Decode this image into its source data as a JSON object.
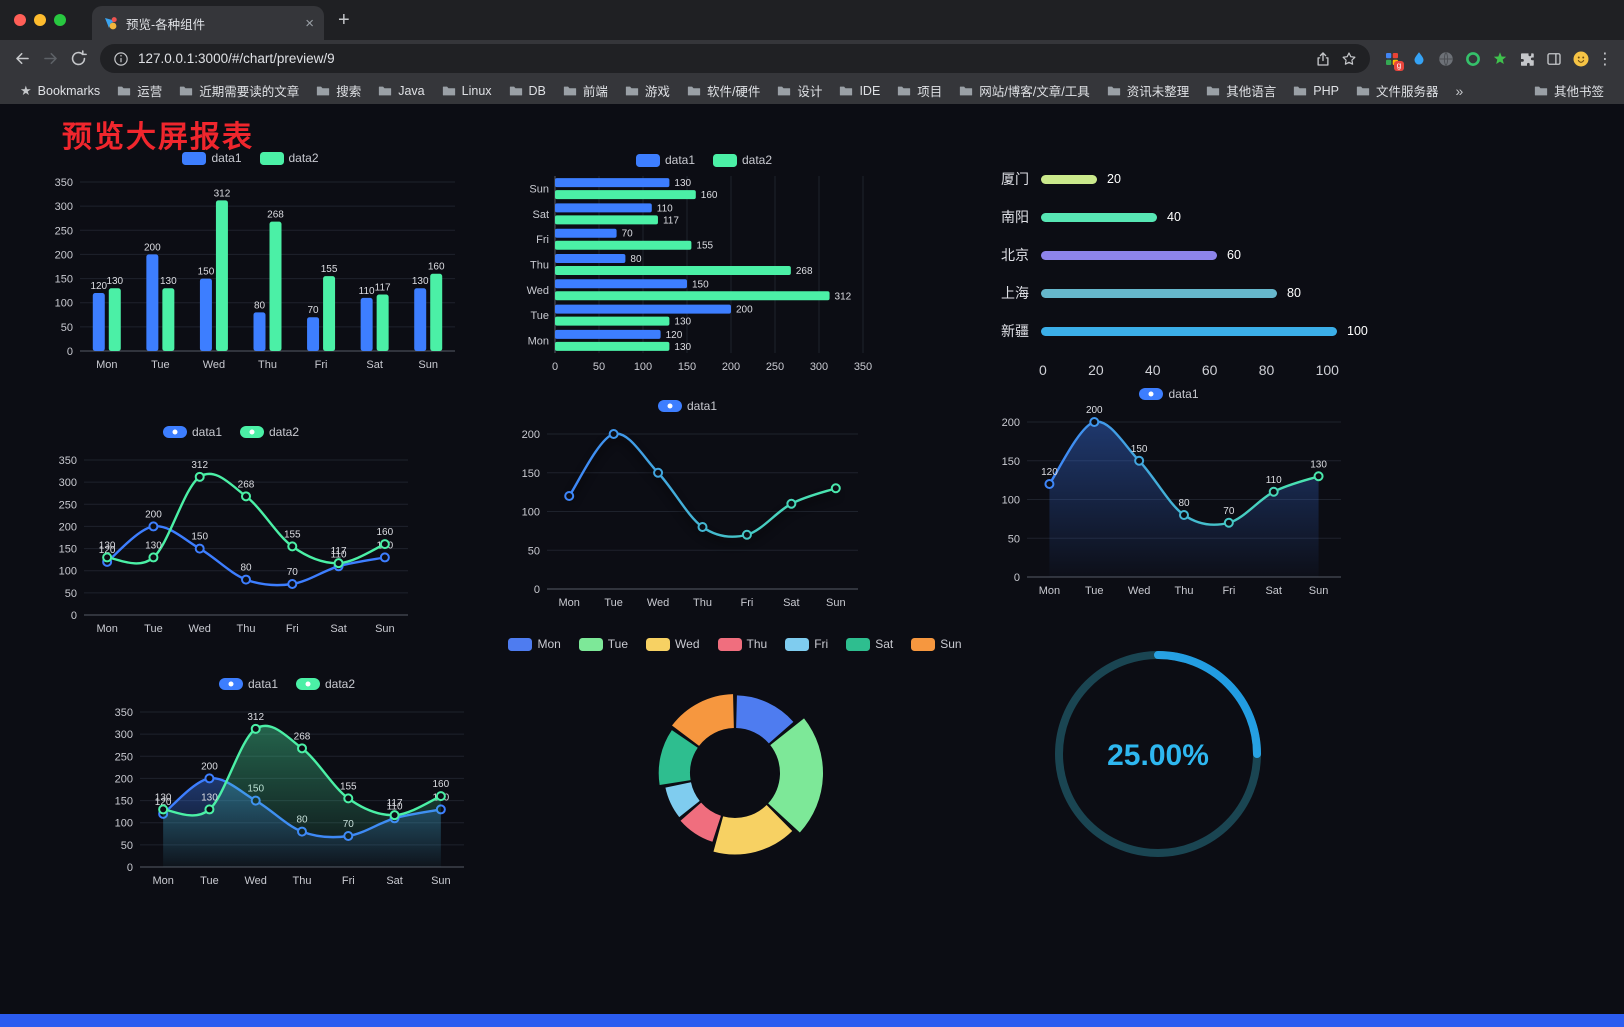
{
  "browser": {
    "tab_title": "预览-各种组件",
    "url": "127.0.0.1:3000/#/chart/preview/9",
    "new_tab_label": "+",
    "close_tab_label": "×",
    "menu_label": "⋮",
    "bookmarks_root_label": "Bookmarks",
    "bookmarks": [
      "Bookmarks",
      "运营",
      "近期需要读的文章",
      "搜索",
      "Java",
      "Linux",
      "DB",
      "前端",
      "游戏",
      "软件/硬件",
      "设计",
      "IDE",
      "项目",
      "网站/博客/文章/工具",
      "资讯未整理",
      "其他语言",
      "PHP",
      "文件服务器",
      "»",
      "其他书签"
    ]
  },
  "page": {
    "title": "预览大屏报表",
    "title_color": "#f0262d"
  },
  "chart_data": [
    {
      "type": "bar",
      "variant": "vertical",
      "show_labels": true,
      "categories": [
        "Mon",
        "Tue",
        "Wed",
        "Thu",
        "Fri",
        "Sat",
        "Sun"
      ],
      "series": [
        {
          "name": "data1",
          "color": "#3D7EFF",
          "values": [
            120,
            200,
            150,
            80,
            70,
            110,
            130
          ]
        },
        {
          "name": "data2",
          "color": "#4BF0A6",
          "values": [
            130,
            130,
            312,
            268,
            155,
            117,
            160
          ]
        }
      ],
      "ylim": [
        0,
        350
      ],
      "yticks": [
        0,
        50,
        100,
        150,
        200,
        250,
        300,
        350
      ],
      "legend_position": "top",
      "grid": true
    },
    {
      "type": "bar",
      "variant": "horizontal",
      "show_labels": true,
      "categories": [
        "Mon",
        "Tue",
        "Wed",
        "Thu",
        "Fri",
        "Sat",
        "Sun"
      ],
      "series": [
        {
          "name": "data1",
          "color": "#3D7EFF",
          "values": [
            120,
            200,
            150,
            80,
            70,
            110,
            130
          ]
        },
        {
          "name": "data2",
          "color": "#4BF0A6",
          "values": [
            130,
            130,
            312,
            268,
            155,
            117,
            160
          ]
        }
      ],
      "xlim": [
        0,
        350
      ],
      "xticks": [
        0,
        50,
        100,
        150,
        200,
        250,
        300,
        350
      ],
      "legend_position": "top",
      "grid": true
    },
    {
      "type": "capsule",
      "rows": [
        {
          "label": "厦门",
          "value": 20,
          "color": "#CBE98C"
        },
        {
          "label": "南阳",
          "value": 40,
          "color": "#57E6B4"
        },
        {
          "label": "北京",
          "value": 60,
          "color": "#8D84EA"
        },
        {
          "label": "上海",
          "value": 80,
          "color": "#66B7CC"
        },
        {
          "label": "新疆",
          "value": 100,
          "color": "#3BAEE8"
        }
      ],
      "xlim": [
        0,
        100
      ],
      "xticks": [
        0,
        20,
        40,
        60,
        80,
        100
      ]
    },
    {
      "type": "line",
      "show_labels": true,
      "smooth": true,
      "categories": [
        "Mon",
        "Tue",
        "Wed",
        "Thu",
        "Fri",
        "Sat",
        "Sun"
      ],
      "series": [
        {
          "name": "data1",
          "color": "#3D7EFF",
          "values": [
            120,
            200,
            150,
            80,
            70,
            110,
            130
          ]
        },
        {
          "name": "data2",
          "color": "#4BF0A6",
          "values": [
            130,
            130,
            312,
            268,
            155,
            117,
            160
          ]
        }
      ],
      "ylim": [
        0,
        350
      ],
      "yticks": [
        0,
        50,
        100,
        150,
        200,
        250,
        300,
        350
      ],
      "legend_position": "top",
      "grid": true
    },
    {
      "type": "line",
      "show_labels": false,
      "smooth": true,
      "shadow": true,
      "categories": [
        "Mon",
        "Tue",
        "Wed",
        "Thu",
        "Fri",
        "Sat",
        "Sun"
      ],
      "series": [
        {
          "name": "data1",
          "gradient": [
            "#3D7EFF",
            "#4BF0A6"
          ],
          "values": [
            120,
            200,
            150,
            80,
            70,
            110,
            130
          ]
        }
      ],
      "ylim": [
        0,
        200
      ],
      "yticks": [
        0,
        50,
        100,
        150,
        200
      ],
      "legend_position": "top",
      "grid": true
    },
    {
      "type": "line",
      "show_labels": true,
      "smooth": true,
      "categories": [
        "Mon",
        "Tue",
        "Wed",
        "Thu",
        "Fri",
        "Sat",
        "Sun"
      ],
      "series": [
        {
          "name": "data1",
          "gradient": [
            "#3D7EFF",
            "#4BF0A6"
          ],
          "area": true,
          "values": [
            120,
            200,
            150,
            80,
            70,
            110,
            130
          ]
        }
      ],
      "ylim": [
        0,
        200
      ],
      "yticks": [
        0,
        50,
        100,
        150,
        200
      ],
      "legend_position": "top",
      "grid": true
    },
    {
      "type": "line",
      "show_labels": true,
      "smooth": true,
      "categories": [
        "Mon",
        "Tue",
        "Wed",
        "Thu",
        "Fri",
        "Sat",
        "Sun"
      ],
      "series": [
        {
          "name": "data1",
          "color": "#3D7EFF",
          "area": true,
          "values": [
            120,
            200,
            150,
            80,
            70,
            110,
            130
          ]
        },
        {
          "name": "data2",
          "color": "#4BF0A6",
          "area": true,
          "values": [
            130,
            130,
            312,
            268,
            155,
            117,
            160
          ]
        }
      ],
      "ylim": [
        0,
        350
      ],
      "yticks": [
        0,
        50,
        100,
        150,
        200,
        250,
        300,
        350
      ],
      "legend_position": "top",
      "grid": true
    },
    {
      "type": "pie",
      "rose": true,
      "legend_position": "top",
      "items": [
        {
          "label": "Mon",
          "value": 120,
          "color": "#4E7CF0"
        },
        {
          "label": "Tue",
          "value": 200,
          "color": "#7DE898"
        },
        {
          "label": "Wed",
          "value": 150,
          "color": "#F7D163"
        },
        {
          "label": "Thu",
          "value": 80,
          "color": "#F06E7E"
        },
        {
          "label": "Fri",
          "value": 70,
          "color": "#7FCCEF"
        },
        {
          "label": "Sat",
          "value": 110,
          "color": "#2EBE8F"
        },
        {
          "label": "Sun",
          "value": 130,
          "color": "#F6973F"
        }
      ]
    },
    {
      "type": "gauge",
      "value": 25,
      "label": "25.00%",
      "color": "#2EB7F0",
      "track_color": "#1A4552"
    }
  ]
}
